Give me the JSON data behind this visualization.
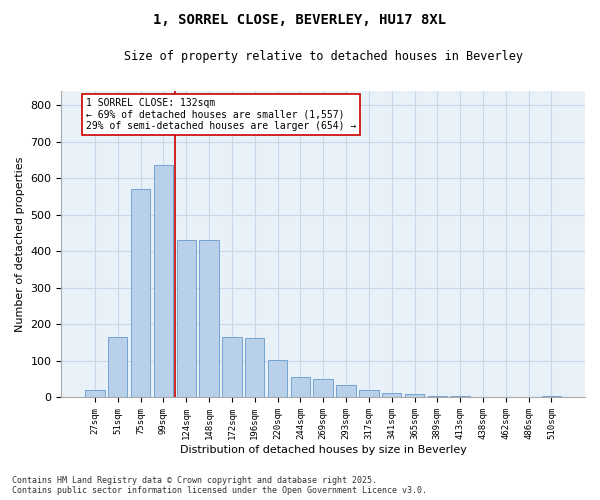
{
  "title": "1, SORREL CLOSE, BEVERLEY, HU17 8XL",
  "subtitle": "Size of property relative to detached houses in Beverley",
  "xlabel": "Distribution of detached houses by size in Beverley",
  "ylabel": "Number of detached properties",
  "categories": [
    "27sqm",
    "51sqm",
    "75sqm",
    "99sqm",
    "124sqm",
    "148sqm",
    "172sqm",
    "196sqm",
    "220sqm",
    "244sqm",
    "269sqm",
    "293sqm",
    "317sqm",
    "341sqm",
    "365sqm",
    "389sqm",
    "413sqm",
    "438sqm",
    "462sqm",
    "486sqm",
    "510sqm"
  ],
  "values": [
    20,
    165,
    570,
    635,
    430,
    430,
    165,
    163,
    102,
    55,
    50,
    33,
    20,
    13,
    10,
    5,
    5,
    2,
    1,
    1,
    5
  ],
  "bar_color": "#b8d0ea",
  "bar_edge_color": "#6699cc",
  "grid_color": "#c8d8e8",
  "bg_color": "#e8f0f8",
  "vline_bar_index": 4,
  "vline_color": "#cc0000",
  "annotation_text": "1 SORREL CLOSE: 132sqm\n← 69% of detached houses are smaller (1,557)\n29% of semi-detached houses are larger (654) →",
  "annotation_box_color": "#ffffff",
  "annotation_box_edge_color": "#cc0000",
  "footer_text": "Contains HM Land Registry data © Crown copyright and database right 2025.\nContains public sector information licensed under the Open Government Licence v3.0.",
  "ylim": [
    0,
    840
  ],
  "yticks": [
    0,
    100,
    200,
    300,
    400,
    500,
    600,
    700,
    800
  ]
}
